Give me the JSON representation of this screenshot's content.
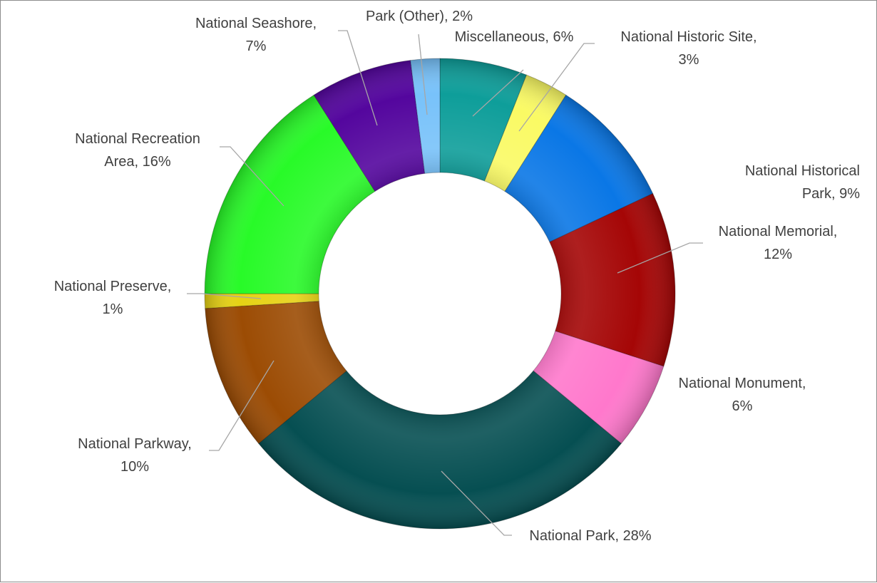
{
  "chart_data": {
    "type": "pie",
    "variant": "doughnut",
    "legend": "none",
    "slices": [
      {
        "name": "Miscellaneous",
        "value": 6,
        "label": "Miscellaneous, 6%",
        "color": "#0e9e9a"
      },
      {
        "name": "National Historic Site",
        "value": 3,
        "label": "National Historic Site, 3%",
        "color": "#fafa64"
      },
      {
        "name": "National Historical Park",
        "value": 9,
        "label": "National Historical Park, 9%",
        "color": "#0a77e6"
      },
      {
        "name": "National Memorial",
        "value": 12,
        "label": "National Memorial, 12%",
        "color": "#a50606"
      },
      {
        "name": "National Monument",
        "value": 6,
        "label": "National Monument, 6%",
        "color": "#ff78cc"
      },
      {
        "name": "National Park",
        "value": 28,
        "label": "National Park, 28%",
        "color": "#064f52"
      },
      {
        "name": "National Parkway",
        "value": 10,
        "label": "National Parkway, 10%",
        "color": "#9c4c04"
      },
      {
        "name": "National Preserve",
        "value": 1,
        "label": "National Preserve, 1%",
        "color": "#e6d214"
      },
      {
        "name": "National Recreation Area",
        "value": 16,
        "label": "National Recreation Area, 16%",
        "color": "#28fa28"
      },
      {
        "name": "National Seashore",
        "value": 7,
        "label": "National Seashore, 7%",
        "color": "#54069e"
      },
      {
        "name": "Park (Other)",
        "value": 2,
        "label": "Park (Other), 2%",
        "color": "#78c2fa"
      }
    ]
  }
}
